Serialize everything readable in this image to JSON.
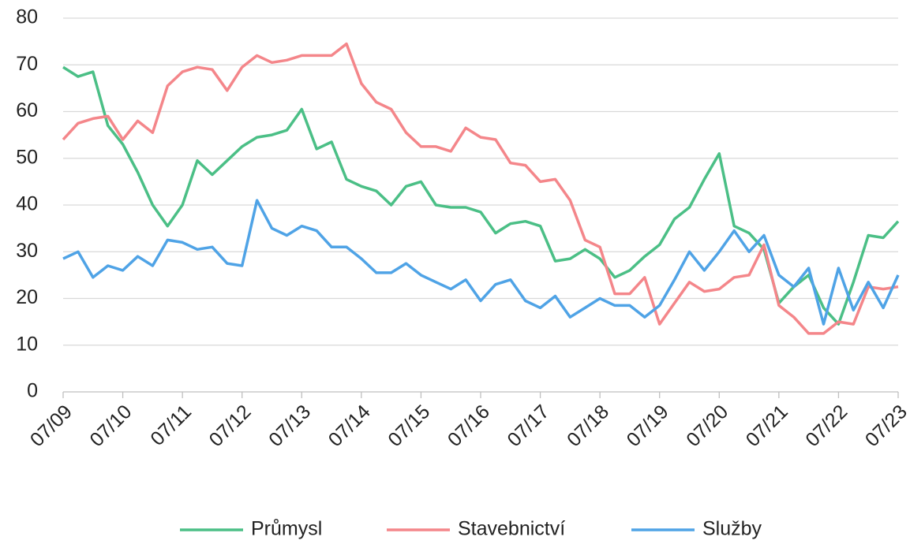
{
  "chart_data": {
    "type": "line",
    "categories": [
      "07/09",
      null,
      null,
      null,
      "07/10",
      null,
      null,
      null,
      "07/11",
      null,
      null,
      null,
      "07/12",
      null,
      null,
      null,
      "07/13",
      null,
      null,
      null,
      "07/14",
      null,
      null,
      null,
      "07/15",
      null,
      null,
      null,
      "07/16",
      null,
      null,
      null,
      "07/17",
      null,
      null,
      null,
      "07/18",
      null,
      null,
      null,
      "07/19",
      null,
      null,
      null,
      "07/20",
      null,
      null,
      null,
      "07/21",
      null,
      null,
      null,
      "07/22",
      null,
      null,
      null,
      "07/23"
    ],
    "series": [
      {
        "name": "Průmysl",
        "color": "#4bbf86",
        "values": [
          69.5,
          67.5,
          68.5,
          57,
          53,
          47,
          40,
          35.5,
          40,
          49.5,
          46.5,
          49.5,
          52.5,
          54.5,
          55,
          56,
          60.5,
          52,
          53.5,
          45.5,
          44,
          43,
          40,
          44,
          45,
          40,
          39.5,
          39.5,
          38.5,
          34,
          36,
          36.5,
          35.5,
          28,
          28.5,
          30.5,
          28.5,
          24.5,
          26,
          29,
          31.5,
          37,
          39.5,
          45.5,
          51,
          35.5,
          34,
          30.5,
          19,
          22.5,
          25,
          18,
          14.5,
          23.5,
          33.5,
          33,
          36.5
        ]
      },
      {
        "name": "Stavebnictví",
        "color": "#f4868a",
        "values": [
          54,
          57.5,
          58.5,
          59,
          54,
          58,
          55.5,
          65.5,
          68.5,
          69.5,
          69,
          64.5,
          69.5,
          72,
          70.5,
          71,
          72,
          72,
          72,
          74.5,
          66,
          62,
          60.5,
          55.5,
          52.5,
          52.5,
          51.5,
          56.5,
          54.5,
          54,
          49,
          48.5,
          45,
          45.5,
          41,
          32.5,
          31,
          21,
          21,
          24.5,
          14.5,
          19,
          23.5,
          21.5,
          22,
          24.5,
          25,
          31.5,
          18.5,
          16,
          12.5,
          12.5,
          15,
          14.5,
          22.5,
          22,
          22.5
        ]
      },
      {
        "name": "Služby",
        "color": "#4fa3e6",
        "values": [
          28.5,
          30,
          24.5,
          27,
          26,
          29,
          27,
          32.5,
          32,
          30.5,
          31,
          27.5,
          27,
          41,
          35,
          33.5,
          35.5,
          34.5,
          31,
          31,
          28.5,
          25.5,
          25.5,
          27.5,
          25,
          23.5,
          22,
          24,
          19.5,
          23,
          24,
          19.5,
          18,
          20.5,
          16,
          18,
          20,
          18.5,
          18.5,
          16,
          18.5,
          24,
          30,
          26,
          30,
          34.5,
          30,
          33.5,
          25,
          22.5,
          26.5,
          14.5,
          26.5,
          17.5,
          23.5,
          18,
          25
        ]
      }
    ],
    "ylim": [
      0,
      80
    ],
    "yticks": [
      0,
      10,
      20,
      30,
      40,
      50,
      60,
      70,
      80
    ],
    "grid": true
  }
}
